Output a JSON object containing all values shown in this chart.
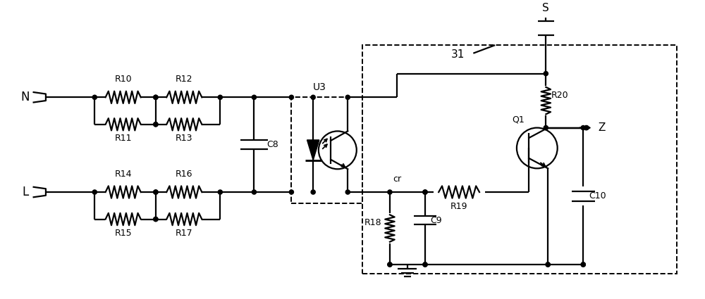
{
  "bg_color": "#ffffff",
  "line_color": "#000000",
  "lw": 1.6,
  "dot_r": 0.032,
  "fig_w": 10.0,
  "fig_h": 4.25,
  "xlim": [
    0,
    10
  ],
  "ylim": [
    0,
    4.25
  ]
}
